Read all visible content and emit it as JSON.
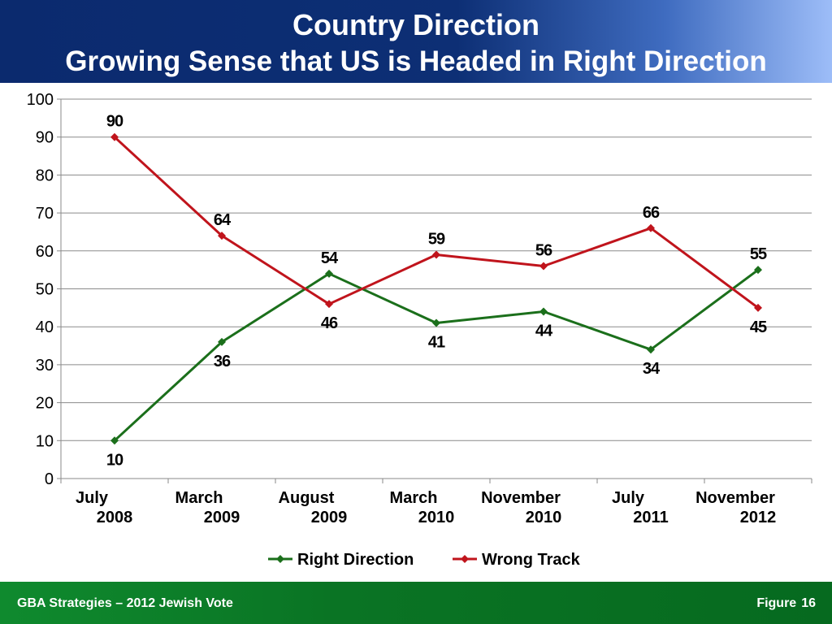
{
  "header": {
    "title": "Country Direction",
    "subtitle": "Growing Sense that US is Headed in Right Direction"
  },
  "footer": {
    "left_text": "GBA Strategies – 2012 Jewish Vote",
    "figure_label": "Figure",
    "figure_number": "16"
  },
  "colors": {
    "header_dark": "#0b2a6e",
    "header_light": "#9dbdf8",
    "footer_green": "#0a7424",
    "right_direction": "#1b6f1b",
    "wrong_track": "#c0141c",
    "gridline": "#8a8a8a"
  },
  "chart_data": {
    "type": "line",
    "categories": [
      [
        "July",
        "2008"
      ],
      [
        "March",
        "2009"
      ],
      [
        "August",
        "2009"
      ],
      [
        "March",
        "2010"
      ],
      [
        "November",
        "2010"
      ],
      [
        "July",
        "2011"
      ],
      [
        "November",
        "2012"
      ]
    ],
    "ylim": [
      0,
      100
    ],
    "yticks": [
      0,
      10,
      20,
      30,
      40,
      50,
      60,
      70,
      80,
      90,
      100
    ],
    "grid": true,
    "legend_position": "bottom",
    "series": [
      {
        "name": "Right Direction",
        "color": "#1b6f1b",
        "marker": "diamond",
        "values": [
          10,
          36,
          54,
          41,
          44,
          34,
          55
        ],
        "label_positions": [
          "below",
          "below",
          "above",
          "below",
          "below",
          "below",
          "above"
        ]
      },
      {
        "name": "Wrong Track",
        "color": "#c0141c",
        "marker": "diamond",
        "values": [
          90,
          64,
          46,
          59,
          56,
          66,
          45
        ],
        "label_positions": [
          "above",
          "above",
          "below",
          "above",
          "above",
          "above",
          "below"
        ]
      }
    ]
  }
}
